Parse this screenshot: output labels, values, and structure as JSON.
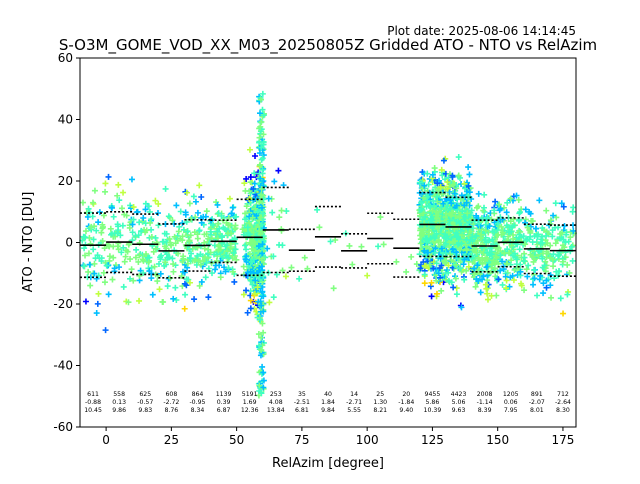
{
  "header": {
    "plot_date": "Plot date: 2025-08-06 14:14:45",
    "title": "S-O3M_GOME_VOD_XX_M03_20250805Z Gridded ATO - NTO vs RelAzim"
  },
  "chart_data": {
    "type": "scatter",
    "title": "S-O3M_GOME_VOD_XX_M03_20250805Z Gridded ATO - NTO vs RelAzim",
    "xlabel": "RelAzim [degree]",
    "ylabel": "ATO - NTO [DU]",
    "xlim": [
      -10,
      180
    ],
    "ylim": [
      -60,
      60
    ],
    "xticks": [
      0,
      25,
      50,
      75,
      100,
      125,
      150,
      175
    ],
    "yticks": [
      -60,
      -40,
      -20,
      0,
      20,
      40,
      60
    ],
    "grid": false,
    "colors": {
      "mean": "#000000",
      "std": "#000000",
      "points": [
        "#0000ff",
        "#0066ff",
        "#00bfff",
        "#40ffc0",
        "#80ff80",
        "#c0ff40",
        "#ffd700"
      ]
    },
    "bins": [
      {
        "x0": -10,
        "x1": 0,
        "count": "611",
        "mean": "-0.88",
        "std": "10.45"
      },
      {
        "x0": 0,
        "x1": 10,
        "count": "558",
        "mean": "0.13",
        "std": "9.86"
      },
      {
        "x0": 10,
        "x1": 20,
        "count": "625",
        "mean": "-0.57",
        "std": "9.83"
      },
      {
        "x0": 20,
        "x1": 30,
        "count": "608",
        "mean": "-2.72",
        "std": "8.76"
      },
      {
        "x0": 30,
        "x1": 40,
        "count": "864",
        "mean": "-0.95",
        "std": "8.34"
      },
      {
        "x0": 40,
        "x1": 50,
        "count": "1139",
        "mean": "0.39",
        "std": "6.87"
      },
      {
        "x0": 50,
        "x1": 60,
        "count": "5191",
        "mean": "1.69",
        "std": "12.36"
      },
      {
        "x0": 60,
        "x1": 70,
        "count": "253",
        "mean": "4.08",
        "std": "13.84"
      },
      {
        "x0": 70,
        "x1": 80,
        "count": "35",
        "mean": "-2.51",
        "std": "6.81"
      },
      {
        "x0": 80,
        "x1": 90,
        "count": "40",
        "mean": "1.84",
        "std": "9.84"
      },
      {
        "x0": 90,
        "x1": 100,
        "count": "14",
        "mean": "-2.71",
        "std": "5.55"
      },
      {
        "x0": 100,
        "x1": 110,
        "count": "25",
        "mean": "1.30",
        "std": "8.21"
      },
      {
        "x0": 110,
        "x1": 120,
        "count": "20",
        "mean": "-1.84",
        "std": "9.40"
      },
      {
        "x0": 120,
        "x1": 130,
        "count": "9455",
        "mean": "5.86",
        "std": "10.39"
      },
      {
        "x0": 130,
        "x1": 140,
        "count": "4423",
        "mean": "5.06",
        "std": "9.63"
      },
      {
        "x0": 140,
        "x1": 150,
        "count": "2008",
        "mean": "-1.14",
        "std": "8.39"
      },
      {
        "x0": 150,
        "x1": 160,
        "count": "1205",
        "mean": "0.06",
        "std": "7.95"
      },
      {
        "x0": 160,
        "x1": 170,
        "count": "891",
        "mean": "-2.07",
        "std": "8.01"
      },
      {
        "x0": 170,
        "x1": 180,
        "count": "712",
        "mean": "-2.64",
        "std": "8.30"
      }
    ]
  }
}
